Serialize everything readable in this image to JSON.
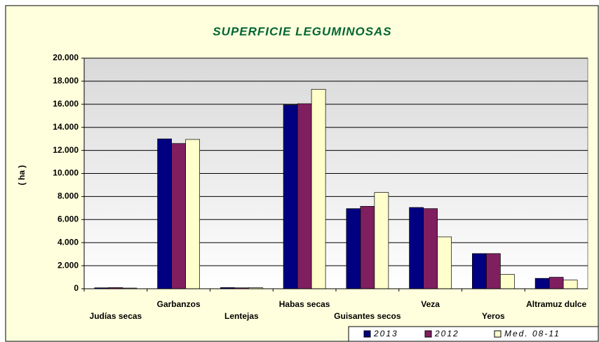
{
  "chart_data": {
    "type": "bar",
    "title": "SUPERFICIE LEGUMINOSAS",
    "y_label": "( ha )",
    "categories": [
      "Judías secas",
      "Garbanzos",
      "Lentejas",
      "Habas secas",
      "Guisantes secos",
      "Veza",
      "Yeros",
      "Altramuz dulce"
    ],
    "series": [
      {
        "name": "2013",
        "color": "#000080",
        "values": [
          80,
          13000,
          100,
          15950,
          6950,
          7050,
          3050,
          900
        ]
      },
      {
        "name": "2012",
        "color": "#7f1f5f",
        "values": [
          100,
          12600,
          80,
          16050,
          7150,
          6950,
          3050,
          1000
        ]
      },
      {
        "name": "Med. 08-11",
        "color": "#ffffcc",
        "values": [
          60,
          12950,
          100,
          17300,
          8350,
          4500,
          1250,
          750
        ]
      }
    ],
    "ylim": [
      0,
      20000
    ],
    "yticks": [
      0,
      {
        "value": 2000,
        "label": "2.000"
      },
      {
        "value": 4000,
        "label": "4.000"
      },
      {
        "value": 6000,
        "label": "6.000"
      },
      {
        "value": 8000,
        "label": "8.000"
      },
      {
        "value": 10000,
        "label": "10.000"
      },
      {
        "value": 12000,
        "label": "12.000"
      },
      {
        "value": 14000,
        "label": "14.000"
      },
      {
        "value": 16000,
        "label": "16.000"
      },
      {
        "value": 18000,
        "label": "18.000"
      },
      {
        "value": 20000,
        "label": "20.000"
      }
    ],
    "grid": true,
    "legend": "bottom-right"
  }
}
